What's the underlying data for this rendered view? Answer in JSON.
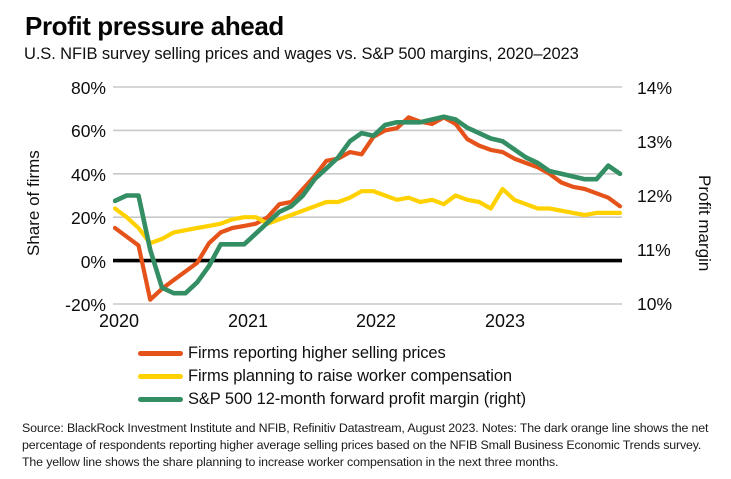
{
  "header": {
    "title": "Profit pressure ahead",
    "subtitle": "U.S. NFIB survey selling prices and wages vs. S&P 500 margins, 2020–2023"
  },
  "axes": {
    "left": {
      "label": "Share of firms",
      "ticks": [
        "80%",
        "60%",
        "40%",
        "20%",
        "0%",
        "-20%"
      ]
    },
    "right": {
      "label": "Profit margin",
      "ticks": [
        "14%",
        "13%",
        "12%",
        "11%",
        "10%"
      ]
    },
    "x": {
      "ticks": [
        "2020",
        "2021",
        "2022",
        "2023"
      ]
    }
  },
  "legend": {
    "items": [
      {
        "label": "Firms reporting higher selling prices",
        "color": "#e5531b"
      },
      {
        "label": "Firms planning to raise worker compensation",
        "color": "#ffd100"
      },
      {
        "label": "S&P 500 12-month forward profit margin (right)",
        "color": "#348e63"
      }
    ]
  },
  "footer": {
    "text": "Source: BlackRock Investment Institute and NFIB, Refinitiv Datastream, August 2023. Notes: The dark orange line shows the net percentage of respondents reporting higher average selling prices based on the NFIB Small Business Economic Trends survey. The yellow line shows the share planning to increase worker compensation in the next three months."
  },
  "chart_data": {
    "type": "line",
    "title": "Profit pressure ahead",
    "subtitle": "U.S. NFIB survey selling prices and wages vs. S&P 500 margins, 2020–2023",
    "x_description": "Monthly, January 2020 through August 2023",
    "x_year_tick_labels": [
      "2020",
      "2021",
      "2022",
      "2023"
    ],
    "x_year_tick_month_index": [
      0,
      12,
      24,
      36
    ],
    "left_axis": {
      "label": "Share of firms",
      "unit": "%",
      "range": [
        -20,
        80
      ],
      "gridline_values": [
        80,
        60,
        40,
        20,
        -20
      ],
      "zero_line": true
    },
    "right_axis": {
      "label": "Profit margin",
      "unit": "%",
      "range": [
        10,
        14
      ]
    },
    "grid": true,
    "legend_position": "bottom",
    "series": [
      {
        "name": "Firms reporting higher selling prices",
        "axis": "left",
        "color": "#e5531b",
        "values": [
          15,
          11,
          7,
          -18,
          -13,
          -9,
          -5,
          -1,
          8,
          13,
          15,
          16,
          17,
          20,
          26,
          27,
          33,
          39,
          46,
          47,
          50,
          49,
          57,
          60,
          61,
          66,
          64,
          63,
          66,
          63,
          56,
          53,
          51,
          50,
          47,
          45,
          43,
          40,
          36,
          34,
          33,
          31,
          29,
          25
        ]
      },
      {
        "name": "Firms planning to raise worker compensation",
        "axis": "left",
        "color": "#ffd100",
        "values": [
          24,
          20,
          15,
          8,
          10,
          13,
          14,
          15,
          16,
          17,
          19,
          20,
          20,
          17,
          19,
          21,
          23,
          25,
          27,
          27,
          29,
          32,
          32,
          30,
          28,
          29,
          27,
          28,
          26,
          30,
          28,
          27,
          24,
          33,
          28,
          26,
          24,
          24,
          23,
          22,
          21,
          22,
          22,
          22
        ]
      },
      {
        "name": "S&P 500 12-month forward profit margin (right)",
        "axis": "right",
        "color": "#348e63",
        "values": [
          11.9,
          12.0,
          12.0,
          11.0,
          10.3,
          10.2,
          10.2,
          10.4,
          10.7,
          11.1,
          11.1,
          11.1,
          11.3,
          11.5,
          11.7,
          11.8,
          12.0,
          12.3,
          12.5,
          12.7,
          13.0,
          13.15,
          13.1,
          13.3,
          13.35,
          13.35,
          13.35,
          13.4,
          13.45,
          13.4,
          13.25,
          13.15,
          13.05,
          13.0,
          12.85,
          12.7,
          12.6,
          12.45,
          12.4,
          12.35,
          12.3,
          12.3,
          12.55,
          12.4
        ]
      }
    ]
  }
}
